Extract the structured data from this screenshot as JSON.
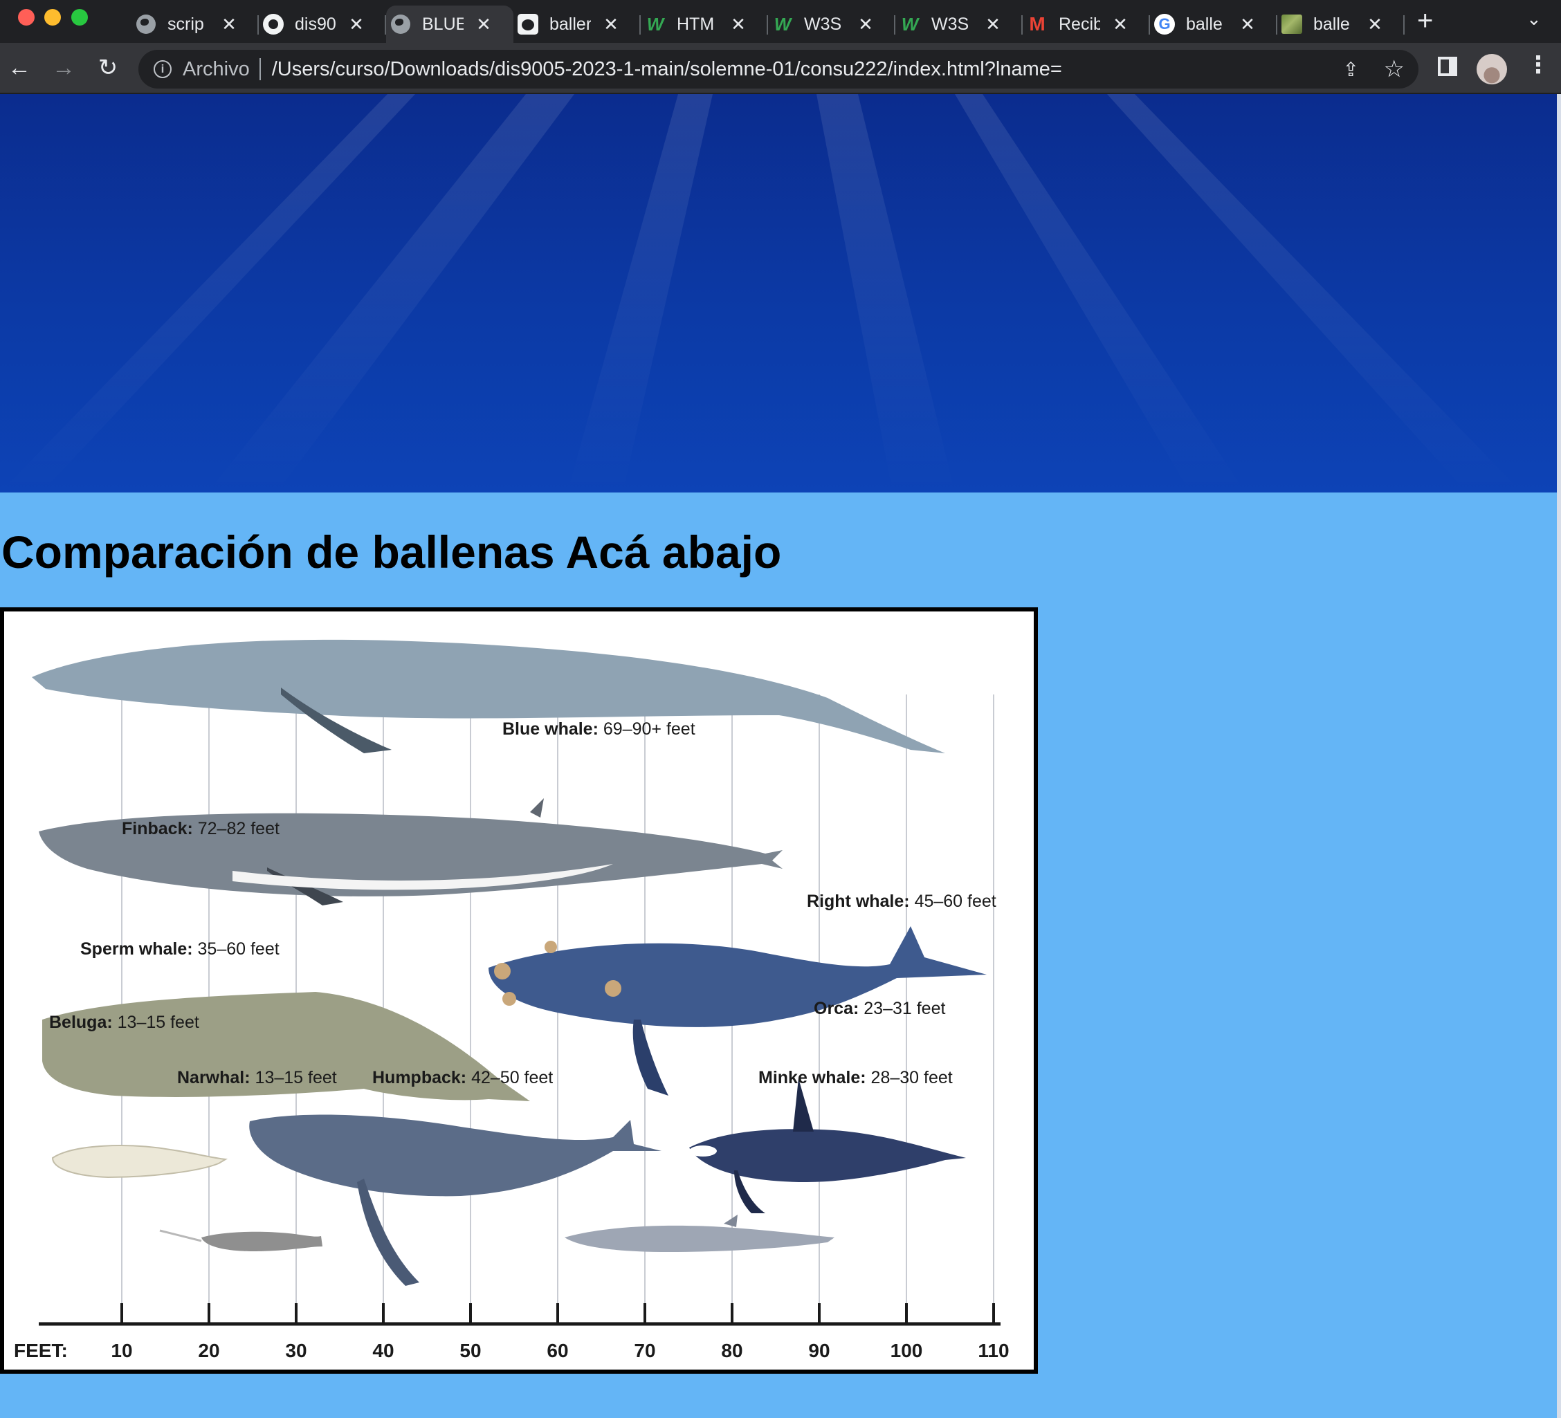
{
  "browser": {
    "tabs": [
      {
        "title": "scrip",
        "icon": "globe-icon"
      },
      {
        "title": "dis90",
        "icon": "github-icon"
      },
      {
        "title": "BLUE",
        "icon": "globe-icon",
        "active": true
      },
      {
        "title": "baller",
        "icon": "panda-icon"
      },
      {
        "title": "HTM",
        "icon": "w3schools-icon"
      },
      {
        "title": "W3S",
        "icon": "w3schools-icon"
      },
      {
        "title": "W3S",
        "icon": "w3schools-icon"
      },
      {
        "title": "Recib",
        "icon": "gmail-icon"
      },
      {
        "title": "balle",
        "icon": "google-icon"
      },
      {
        "title": "balle",
        "icon": "photo-icon"
      }
    ],
    "address": {
      "origin_label": "Archivo",
      "url": "/Users/curso/Downloads/dis9005-2023-1-main/solemne-01/consu222/index.html?lname="
    }
  },
  "page": {
    "heading": "Comparación de ballenas Acá abajo",
    "background_color": "#64b5f6",
    "hero_color": "#0c3aa6"
  },
  "figure": {
    "whales": [
      {
        "name": "Blue whale:",
        "length": "69–90+ feet",
        "color": "#8fa3b3"
      },
      {
        "name": "Finback:",
        "length": "72–82 feet",
        "color": "#7b8590"
      },
      {
        "name": "Right whale:",
        "length": "45–60 feet",
        "color": "#3e5a8e"
      },
      {
        "name": "Sperm whale:",
        "length": "35–60 feet",
        "color": "#9c9f86"
      },
      {
        "name": "Beluga:",
        "length": "13–15 feet",
        "color": "#ece8d8"
      },
      {
        "name": "Orca:",
        "length": "23–31 feet",
        "color": "#2f3f6a"
      },
      {
        "name": "Narwhal:",
        "length": "13–15 feet",
        "color": "#8f8f8f"
      },
      {
        "name": "Humpback:",
        "length": "42–50 feet",
        "color": "#5b6c88"
      },
      {
        "name": "Minke whale:",
        "length": "28–30 feet",
        "color": "#9ea6b4"
      }
    ],
    "axis": {
      "unit": "FEET:",
      "ticks": [
        "10",
        "20",
        "30",
        "40",
        "50",
        "60",
        "70",
        "80",
        "90",
        "100",
        "110"
      ]
    }
  }
}
